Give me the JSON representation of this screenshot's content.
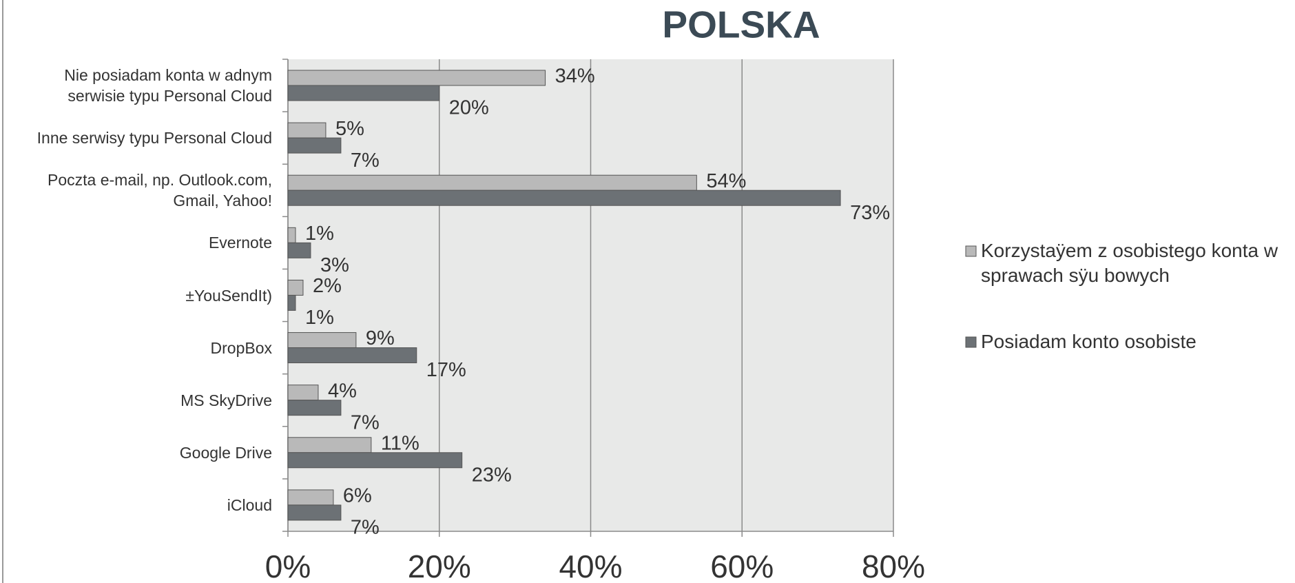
{
  "chart_data": {
    "type": "bar",
    "orientation": "horizontal",
    "title": "POLSKA",
    "categories": [
      "Nie posiadam konta w   adnym serwisie typu Personal Cloud",
      "Inne serwisy typu Personal Cloud",
      "Poczta e-mail, np. Outlook.com, Gmail, Yahoo!",
      "Evernote",
      "±YouSendIt)",
      "DropBox",
      "MS SkyDrive",
      "Google Drive",
      "iCloud"
    ],
    "series": [
      {
        "name": "Korzystaÿem z osobistego konta w sprawach sÿu  bowych",
        "color": "#b9b9b9",
        "values": [
          34,
          5,
          54,
          1,
          2,
          9,
          4,
          11,
          6
        ],
        "value_labels": [
          "34%",
          "5%",
          "54%",
          "1%",
          "2%",
          "9%",
          "4%",
          "11%",
          "6%"
        ]
      },
      {
        "name": "Posiadam konto osobiste",
        "color": "#6c7175",
        "values": [
          20,
          7,
          73,
          3,
          1,
          17,
          7,
          23,
          7
        ],
        "value_labels": [
          "20%",
          "7%",
          "73%",
          "3%",
          "1%",
          "17%",
          "7%",
          "23%",
          "7%"
        ]
      }
    ],
    "xlim": [
      0,
      80
    ],
    "xticks": [
      {
        "value": 0,
        "label": "0%"
      },
      {
        "value": 20,
        "label": "20%"
      },
      {
        "value": 40,
        "label": "40%"
      },
      {
        "value": 60,
        "label": "60%"
      },
      {
        "value": 80,
        "label": "80%"
      }
    ],
    "grid": true,
    "legend": "right"
  }
}
